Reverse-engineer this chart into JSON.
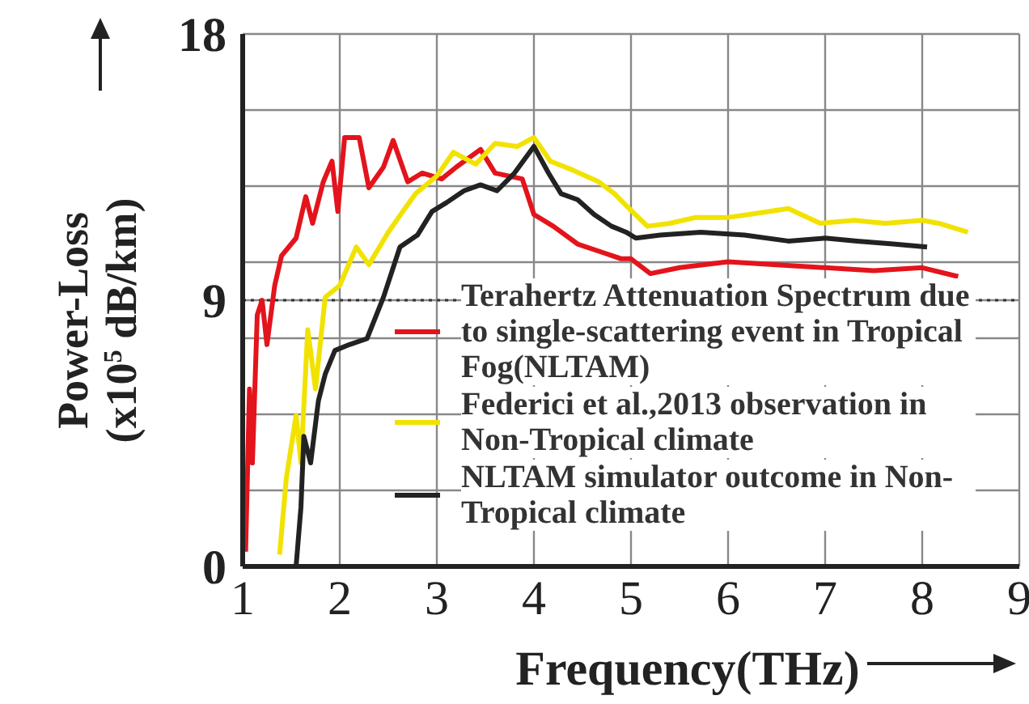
{
  "chart_data": {
    "type": "line",
    "xlabel": "Frequency(THz)",
    "ylabel": "Power-Loss\n(x10$^{5}$ dB/km)",
    "xlim": [
      1,
      9
    ],
    "xticks": [
      1,
      2,
      3,
      4,
      5,
      6,
      7,
      8,
      9
    ],
    "ylim": [
      0,
      18
    ],
    "yticks": [
      0,
      {
        "value": 2.571,
        "label": null
      },
      {
        "value": 5.143,
        "label": null
      },
      {
        "value": 7.714,
        "label": null
      },
      9,
      {
        "value": 10.286,
        "label": null
      },
      {
        "value": 12.857,
        "label": null
      },
      {
        "value": 15.429,
        "label": null
      },
      18
    ],
    "grid": true,
    "legend": "bottom right",
    "marker": "none",
    "ref_lines": [
      {
        "axis": "y",
        "value": 9,
        "label": null,
        "color": "#333333",
        "line_style": "dotted"
      }
    ],
    "series": [
      {
        "name": "Terahertz Attenuation Spectrum due to single-scattering event in Tropical Fog(NLTAM)",
        "color": "#e3141c",
        "x": [
          1.03,
          1.07,
          1.1,
          1.15,
          1.2,
          1.25,
          1.33,
          1.4,
          1.55,
          1.65,
          1.72,
          1.83,
          1.92,
          1.98,
          2.05,
          2.2,
          2.3,
          2.45,
          2.55,
          2.7,
          2.85,
          3.05,
          3.2,
          3.45,
          3.6,
          3.88,
          4.0,
          4.2,
          4.45,
          4.72,
          4.9,
          5.0,
          5.2,
          5.5,
          6.0,
          6.5,
          7.0,
          7.5,
          8.0,
          8.37
        ],
        "values": [
          0.5,
          6,
          3.5,
          8.5,
          9,
          7.5,
          9.5,
          10.5,
          11.1,
          12.5,
          11.6,
          13,
          13.7,
          12,
          14.5,
          14.5,
          12.8,
          13.5,
          14.4,
          13,
          13.3,
          13.1,
          13.5,
          14.1,
          13.3,
          13.1,
          11.9,
          11.5,
          10.9,
          10.6,
          10.4,
          10.4,
          9.9,
          10.1,
          10.3,
          10.2,
          10.1,
          10.0,
          10.1,
          9.8
        ]
      },
      {
        "name": "Federici et al.,2013 observation in Non-Tropical climate",
        "color": "#f2e200",
        "x": [
          1.38,
          1.45,
          1.55,
          1.6,
          1.67,
          1.75,
          1.85,
          2.0,
          2.17,
          2.3,
          2.5,
          2.65,
          2.78,
          3.0,
          3.17,
          3.4,
          3.6,
          3.83,
          4.0,
          4.17,
          4.4,
          4.67,
          4.83,
          4.95,
          5.17,
          5.4,
          5.67,
          6.0,
          6.22,
          6.62,
          6.95,
          7.3,
          7.62,
          8.0,
          8.17,
          8.47
        ],
        "values": [
          0.4,
          3,
          5.1,
          3.5,
          8,
          6,
          9.1,
          9.5,
          10.8,
          10.2,
          11.3,
          12,
          12.6,
          13.2,
          14,
          13.6,
          14.3,
          14.2,
          14.5,
          13.7,
          13.4,
          13,
          12.6,
          12.2,
          11.5,
          11.6,
          11.8,
          11.8,
          11.9,
          12.1,
          11.6,
          11.7,
          11.6,
          11.7,
          11.6,
          11.3
        ]
      },
      {
        "name": "NLTAM simulator outcome in Non-Tropical climate",
        "color": "#222222",
        "x": [
          1.55,
          1.6,
          1.63,
          1.7,
          1.78,
          1.85,
          1.95,
          2.1,
          2.28,
          2.45,
          2.62,
          2.8,
          2.95,
          3.1,
          3.28,
          3.45,
          3.62,
          3.8,
          4.0,
          4.15,
          4.28,
          4.45,
          4.62,
          4.8,
          4.95,
          5.05,
          5.3,
          5.72,
          6.17,
          6.62,
          7.0,
          7.33,
          7.7,
          8.05
        ],
        "values": [
          0,
          2,
          4.4,
          3.5,
          5.6,
          6.5,
          7.3,
          7.5,
          7.7,
          9.1,
          10.8,
          11.2,
          12,
          12.3,
          12.7,
          12.9,
          12.7,
          13.3,
          14.2,
          13.3,
          12.6,
          12.4,
          11.9,
          11.5,
          11.3,
          11.1,
          11.2,
          11.3,
          11.2,
          11,
          11.1,
          11,
          10.9,
          10.8
        ]
      }
    ]
  }
}
